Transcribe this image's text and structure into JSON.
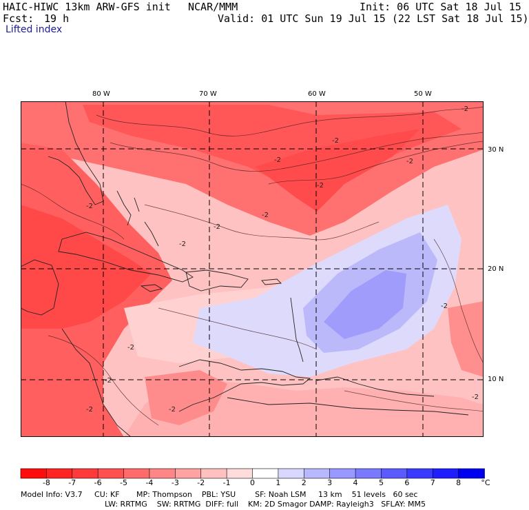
{
  "header": {
    "model": "HAIC-HIWC 13km ARW-GFS init",
    "org": "NCAR/MMM",
    "init": "Init: 06 UTC Sat 18 Jul 15",
    "fcst_label": "Fcst:",
    "fcst_value": "19 h",
    "valid": "Valid: 01 UTC Sun 19 Jul 15 (22 LST Sat 18 Jul 15)",
    "field": "Lifted index"
  },
  "map": {
    "lon_labels": [
      "80 W",
      "70 W",
      "60 W",
      "50 W"
    ],
    "lat_labels": [
      "30 N",
      "20 N",
      "10 N"
    ],
    "contour_labels": [
      "-2",
      "-2",
      "-2",
      "-2",
      "-2",
      "-2",
      "-2",
      "-2",
      "-2",
      "-2",
      "-2",
      "-2",
      "-2",
      "-2",
      "-2"
    ]
  },
  "colorbar": {
    "labels": [
      "-8",
      "-7",
      "-6",
      "-5",
      "-4",
      "-3",
      "-2",
      "-1",
      "0",
      "1",
      "2",
      "3",
      "4",
      "5",
      "6",
      "7",
      "8"
    ],
    "unit": "°C",
    "colors": [
      "#ff0d0d",
      "#ff2424",
      "#ff3a3a",
      "#ff5050",
      "#ff6a6a",
      "#ff8686",
      "#ffa2a2",
      "#ffc0c0",
      "#ffdcdc",
      "#ffffff",
      "#d8d8ff",
      "#b8b8ff",
      "#9898ff",
      "#7a7aff",
      "#5a5aff",
      "#3a3aff",
      "#1e1eff",
      "#0000f0"
    ]
  },
  "footer": {
    "line1": "Model Info: V3.7     CU: KF       MP: Thompson    PBL: YSU        SF: Noah LSM     13 km    51 levels   60 sec",
    "line2": "LW: RRTMG    SW: RRTMG  DIFF: full    KM: 2D Smagor DAMP: Rayleigh3   SFLAY: MM5"
  }
}
